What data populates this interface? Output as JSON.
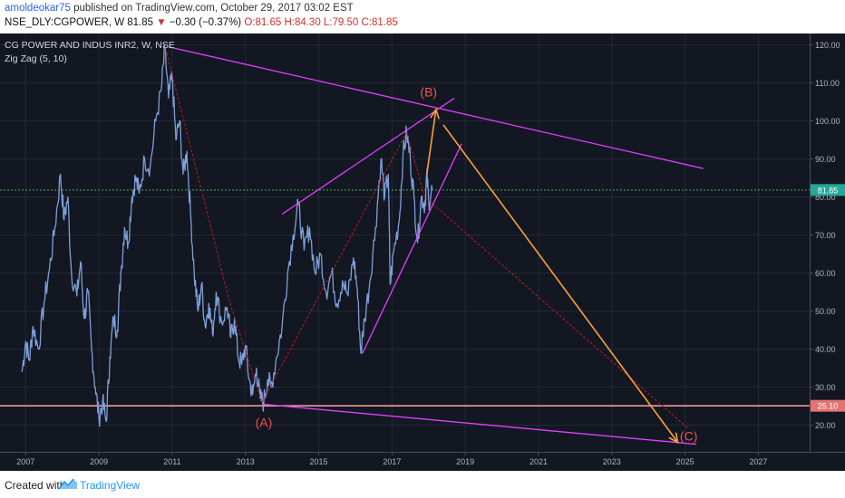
{
  "header": {
    "author": "amoldeokar75",
    "published_text": "published on TradingView.com, October 29, 2017 03:02 EST",
    "symbol": "NSE_DLY:CGPOWER, W",
    "price": "81.85",
    "change": "−0.30 (−0.37%)",
    "ohlc": "O:81.65 H:84.30 L:79.50 C:81.85"
  },
  "footer": {
    "created_with": "Created with",
    "brand": "TradingView"
  },
  "colors": {
    "background": "#131722",
    "price_line": "#7e9fd9",
    "trendline": "#e040fb",
    "zigzag": "#b71c1c",
    "arrow": "#f7a13f",
    "label": "#ef5350",
    "current_price": "#4caf50",
    "support": "#ef9a9a"
  },
  "chart_data": {
    "type": "line",
    "title": "CG POWER AND INDUS INR2, W, NSE",
    "indicator": "Zig Zag (5, 10)",
    "x_ticks": [
      "2007",
      "2009",
      "2011",
      "2013",
      "2015",
      "2017",
      "2019",
      "2021",
      "2023",
      "2025",
      "2027"
    ],
    "y_ticks": [
      "20.00",
      "30.00",
      "40.00",
      "50.00",
      "60.00",
      "70.00",
      "80.00",
      "90.00",
      "100.00",
      "110.00",
      "120.00"
    ],
    "ylim": [
      13,
      123
    ],
    "xlim": [
      2006.3,
      2028.4
    ],
    "grid": true,
    "current_price": {
      "label": "81.85",
      "value": 81.85
    },
    "support_level": {
      "label": "25.10",
      "value": 25.1
    },
    "price_series": [
      [
        2006.9,
        34
      ],
      [
        2007.0,
        42
      ],
      [
        2007.1,
        37
      ],
      [
        2007.2,
        46
      ],
      [
        2007.35,
        40
      ],
      [
        2007.5,
        52
      ],
      [
        2007.65,
        61
      ],
      [
        2007.8,
        72
      ],
      [
        2007.95,
        86
      ],
      [
        2008.05,
        74
      ],
      [
        2008.15,
        80
      ],
      [
        2008.25,
        60
      ],
      [
        2008.4,
        54
      ],
      [
        2008.5,
        63
      ],
      [
        2008.6,
        48
      ],
      [
        2008.7,
        55
      ],
      [
        2008.8,
        40
      ],
      [
        2008.9,
        30
      ],
      [
        2009.0,
        22
      ],
      [
        2009.1,
        26
      ],
      [
        2009.2,
        21
      ],
      [
        2009.3,
        38
      ],
      [
        2009.4,
        48
      ],
      [
        2009.5,
        45
      ],
      [
        2009.6,
        60
      ],
      [
        2009.7,
        72
      ],
      [
        2009.8,
        68
      ],
      [
        2009.9,
        80
      ],
      [
        2010.0,
        85
      ],
      [
        2010.1,
        81
      ],
      [
        2010.25,
        90
      ],
      [
        2010.4,
        88
      ],
      [
        2010.55,
        100
      ],
      [
        2010.7,
        108
      ],
      [
        2010.8,
        119
      ],
      [
        2010.9,
        106
      ],
      [
        2011.0,
        112
      ],
      [
        2011.1,
        95
      ],
      [
        2011.2,
        100
      ],
      [
        2011.3,
        86
      ],
      [
        2011.4,
        92
      ],
      [
        2011.5,
        76
      ],
      [
        2011.6,
        60
      ],
      [
        2011.7,
        50
      ],
      [
        2011.8,
        57
      ],
      [
        2011.9,
        46
      ],
      [
        2012.0,
        52
      ],
      [
        2012.1,
        44
      ],
      [
        2012.2,
        55
      ],
      [
        2012.35,
        47
      ],
      [
        2012.5,
        51
      ],
      [
        2012.6,
        43
      ],
      [
        2012.7,
        48
      ],
      [
        2012.8,
        38
      ],
      [
        2012.9,
        36
      ],
      [
        2013.0,
        41
      ],
      [
        2013.1,
        32
      ],
      [
        2013.2,
        28
      ],
      [
        2013.3,
        35
      ],
      [
        2013.4,
        27
      ],
      [
        2013.5,
        26
      ],
      [
        2013.6,
        32
      ],
      [
        2013.7,
        30
      ],
      [
        2013.85,
        38
      ],
      [
        2014.0,
        46
      ],
      [
        2014.15,
        60
      ],
      [
        2014.3,
        70
      ],
      [
        2014.45,
        78
      ],
      [
        2014.6,
        66
      ],
      [
        2014.75,
        72
      ],
      [
        2014.9,
        60
      ],
      [
        2015.05,
        65
      ],
      [
        2015.2,
        55
      ],
      [
        2015.35,
        60
      ],
      [
        2015.5,
        52
      ],
      [
        2015.65,
        58
      ],
      [
        2015.8,
        54
      ],
      [
        2015.95,
        64
      ],
      [
        2016.05,
        56
      ],
      [
        2016.15,
        39
      ],
      [
        2016.25,
        48
      ],
      [
        2016.4,
        58
      ],
      [
        2016.55,
        72
      ],
      [
        2016.7,
        90
      ],
      [
        2016.8,
        80
      ],
      [
        2016.9,
        86
      ],
      [
        2016.95,
        57
      ],
      [
        2017.05,
        66
      ],
      [
        2017.2,
        74
      ],
      [
        2017.3,
        91
      ],
      [
        2017.4,
        97
      ],
      [
        2017.5,
        90
      ],
      [
        2017.6,
        80
      ],
      [
        2017.7,
        68
      ],
      [
        2017.8,
        80
      ],
      [
        2017.9,
        78
      ],
      [
        2017.95,
        86
      ],
      [
        2018.0,
        79
      ],
      [
        2018.1,
        82
      ]
    ],
    "zigzag": [
      [
        2010.82,
        119
      ],
      [
        2011.85,
        80
      ],
      [
        2012.55,
        53
      ],
      [
        2013.45,
        26
      ],
      [
        2017.4,
        97
      ],
      [
        2017.9,
        80
      ],
      [
        2025.1,
        19
      ]
    ],
    "trendlines": [
      {
        "name": "upper-resistance",
        "from": [
          2010.9,
          119.5
        ],
        "to": [
          2025.5,
          87.5
        ]
      },
      {
        "name": "lower-support",
        "from": [
          2013.5,
          25.5
        ],
        "to": [
          2025.3,
          15
        ]
      },
      {
        "name": "channel-top",
        "from": [
          2014.0,
          75.5
        ],
        "to": [
          2018.7,
          106
        ]
      },
      {
        "name": "channel-bottom",
        "from": [
          2016.2,
          39
        ],
        "to": [
          2018.9,
          94
        ]
      }
    ],
    "arrows": [
      {
        "name": "rise-to-b",
        "from": [
          2017.95,
          86
        ],
        "to": [
          2018.2,
          103
        ]
      },
      {
        "name": "fall-to-c",
        "from": [
          2018.4,
          99
        ],
        "to": [
          2024.8,
          15.5
        ]
      }
    ],
    "wave_labels": [
      {
        "label": "(A)",
        "x": 2013.5,
        "y": 19.5
      },
      {
        "label": "(B)",
        "x": 2018.0,
        "y": 106.5
      },
      {
        "label": "(C)",
        "x": 2025.1,
        "y": 16
      }
    ]
  }
}
